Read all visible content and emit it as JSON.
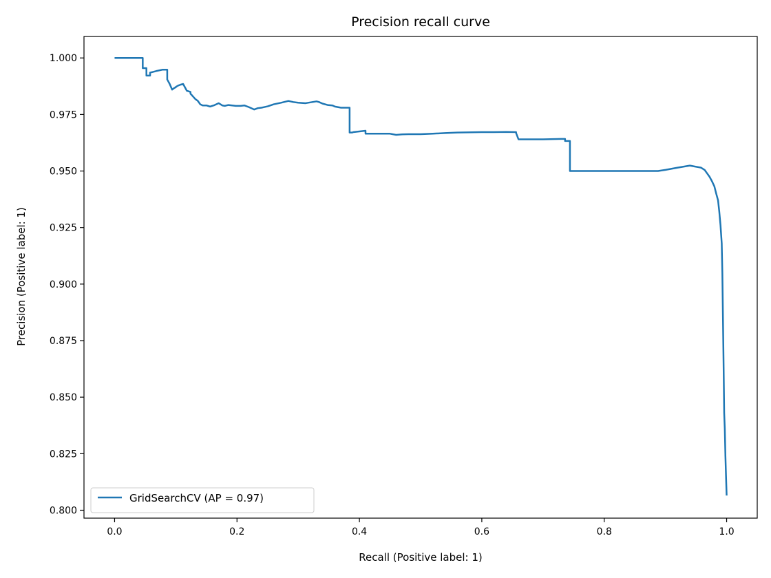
{
  "chart_data": {
    "type": "line",
    "title": "Precision recall curve",
    "xlabel": "Recall (Positive label: 1)",
    "ylabel": "Precision (Positive label: 1)",
    "xlim": [
      -0.05,
      1.05
    ],
    "ylim": [
      0.7965,
      1.0095
    ],
    "x_ticks": [
      0.0,
      0.2,
      0.4,
      0.6,
      0.8,
      1.0
    ],
    "x_tick_labels": [
      "0.0",
      "0.2",
      "0.4",
      "0.6",
      "0.8",
      "1.0"
    ],
    "y_ticks": [
      0.8,
      0.825,
      0.85,
      0.875,
      0.9,
      0.925,
      0.95,
      0.975,
      1.0
    ],
    "y_tick_labels": [
      "0.800",
      "0.825",
      "0.850",
      "0.875",
      "0.900",
      "0.925",
      "0.950",
      "0.975",
      "1.000"
    ],
    "grid": false,
    "legend_position": "lower-left",
    "series": [
      {
        "name": "GridSearchCV (AP = 0.97)",
        "color": "#1f77b4",
        "x": [
          0.0,
          0.046,
          0.046,
          0.052,
          0.052,
          0.058,
          0.058,
          0.068,
          0.078,
          0.086,
          0.086,
          0.09,
          0.094,
          0.098,
          0.1,
          0.1,
          0.104,
          0.108,
          0.112,
          0.118,
          0.124,
          0.124,
          0.128,
          0.132,
          0.136,
          0.14,
          0.144,
          0.15,
          0.156,
          0.162,
          0.17,
          0.176,
          0.18,
          0.186,
          0.192,
          0.198,
          0.206,
          0.212,
          0.22,
          0.228,
          0.234,
          0.24,
          0.25,
          0.26,
          0.272,
          0.284,
          0.292,
          0.3,
          0.312,
          0.33,
          0.334,
          0.34,
          0.348,
          0.356,
          0.36,
          0.37,
          0.384,
          0.384,
          0.388,
          0.39,
          0.4,
          0.41,
          0.41,
          0.43,
          0.45,
          0.46,
          0.47,
          0.48,
          0.5,
          0.52,
          0.54,
          0.56,
          0.6,
          0.62,
          0.64,
          0.656,
          0.656,
          0.66,
          0.7,
          0.73,
          0.736,
          0.736,
          0.744,
          0.744,
          0.76,
          0.8,
          0.85,
          0.888,
          0.9,
          0.92,
          0.94,
          0.948,
          0.958,
          0.964,
          0.968,
          0.972,
          0.976,
          0.98,
          0.983,
          0.986,
          0.988,
          0.99,
          0.992,
          0.993,
          0.994,
          0.995,
          0.996,
          0.997,
          0.998,
          0.999,
          1.0
        ],
        "y": [
          1.0,
          1.0,
          0.9955,
          0.9955,
          0.9922,
          0.9922,
          0.9935,
          0.9942,
          0.9948,
          0.9948,
          0.9905,
          0.9885,
          0.986,
          0.9868,
          0.987,
          0.9872,
          0.9878,
          0.9882,
          0.9885,
          0.9855,
          0.985,
          0.9842,
          0.983,
          0.9818,
          0.981,
          0.9795,
          0.979,
          0.979,
          0.9785,
          0.979,
          0.98,
          0.979,
          0.9788,
          0.9792,
          0.979,
          0.9788,
          0.9788,
          0.979,
          0.9782,
          0.9772,
          0.9778,
          0.978,
          0.9786,
          0.9795,
          0.9802,
          0.981,
          0.9805,
          0.9802,
          0.98,
          0.9808,
          0.9805,
          0.9798,
          0.9792,
          0.979,
          0.9785,
          0.978,
          0.978,
          0.967,
          0.967,
          0.9672,
          0.9675,
          0.9678,
          0.9665,
          0.9665,
          0.9665,
          0.966,
          0.9662,
          0.9663,
          0.9663,
          0.9665,
          0.9668,
          0.967,
          0.9672,
          0.9672,
          0.9673,
          0.9672,
          0.9668,
          0.964,
          0.964,
          0.9642,
          0.9642,
          0.9633,
          0.9633,
          0.95,
          0.95,
          0.95,
          0.95,
          0.95,
          0.9505,
          0.9515,
          0.9524,
          0.952,
          0.9515,
          0.9505,
          0.949,
          0.9475,
          0.9455,
          0.9432,
          0.94,
          0.937,
          0.932,
          0.926,
          0.918,
          0.905,
          0.885,
          0.865,
          0.843,
          0.836,
          0.824,
          0.815,
          0.8065
        ]
      }
    ]
  }
}
